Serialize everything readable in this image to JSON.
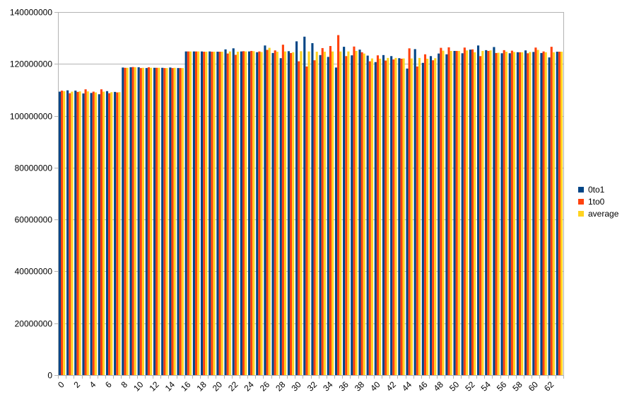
{
  "chart_data": {
    "type": "bar",
    "title": "",
    "xlabel": "",
    "ylabel": "",
    "ylim": [
      0,
      140000000
    ],
    "yticks": [
      0,
      20000000,
      40000000,
      60000000,
      80000000,
      100000000,
      120000000,
      140000000
    ],
    "ytick_labels": [
      "0",
      "20000000",
      "40000000",
      "60000000",
      "80000000",
      "100000000",
      "120000000",
      "140000000"
    ],
    "grid": "horizontal",
    "legend_position": "right",
    "categories": [
      0,
      1,
      2,
      3,
      4,
      5,
      6,
      7,
      8,
      9,
      10,
      11,
      12,
      13,
      14,
      15,
      16,
      17,
      18,
      19,
      20,
      21,
      22,
      23,
      24,
      25,
      26,
      27,
      28,
      29,
      30,
      31,
      32,
      33,
      34,
      35,
      36,
      37,
      38,
      39,
      40,
      41,
      42,
      43,
      44,
      45,
      46,
      47,
      48,
      49,
      50,
      51,
      52,
      53,
      54,
      55,
      56,
      57,
      58,
      59,
      60,
      61,
      62,
      63
    ],
    "xtick_labels_shown": [
      "0",
      "2",
      "4",
      "6",
      "8",
      "10",
      "12",
      "14",
      "16",
      "18",
      "20",
      "22",
      "24",
      "26",
      "28",
      "30",
      "32",
      "34",
      "36",
      "38",
      "40",
      "42",
      "44",
      "46",
      "48",
      "50",
      "52",
      "54",
      "56",
      "58",
      "60",
      "62"
    ],
    "series": [
      {
        "name": "0to1",
        "color": "#004586",
        "values": [
          109300000,
          109800000,
          109700000,
          108600000,
          108800000,
          108300000,
          109500000,
          109200000,
          118600000,
          118700000,
          118700000,
          118400000,
          118500000,
          118500000,
          118600000,
          118400000,
          124800000,
          124800000,
          124800000,
          124800000,
          124700000,
          125600000,
          126000000,
          124800000,
          124800000,
          124500000,
          127100000,
          124200000,
          122200000,
          124900000,
          128700000,
          130500000,
          128000000,
          123400000,
          122700000,
          118600000,
          126600000,
          123300000,
          125500000,
          123200000,
          120700000,
          123400000,
          123000000,
          122200000,
          118200000,
          125700000,
          120400000,
          123000000,
          124000000,
          123700000,
          125000000,
          124100000,
          125500000,
          127100000,
          125300000,
          126500000,
          124100000,
          124100000,
          124500000,
          125200000,
          124600000,
          124200000,
          122500000,
          124700000
        ]
      },
      {
        "name": "1to0",
        "color": "#ff420e",
        "values": [
          109700000,
          108700000,
          109200000,
          110200000,
          109300000,
          110200000,
          108700000,
          109000000,
          118500000,
          118800000,
          118400000,
          118700000,
          118500000,
          118400000,
          118400000,
          118400000,
          124800000,
          124800000,
          124700000,
          124700000,
          124700000,
          124000000,
          123500000,
          124900000,
          125000000,
          124800000,
          125400000,
          125200000,
          127400000,
          124200000,
          121000000,
          119000000,
          121400000,
          126100000,
          126900000,
          131100000,
          123000000,
          126700000,
          124500000,
          121000000,
          123300000,
          121300000,
          121700000,
          122000000,
          126000000,
          119000000,
          123700000,
          121400000,
          126200000,
          126400000,
          125000000,
          126300000,
          125600000,
          123000000,
          125000000,
          124200000,
          125300000,
          125100000,
          124500000,
          124100000,
          126300000,
          124800000,
          126600000,
          124700000
        ]
      },
      {
        "name": "average",
        "color": "#ffd320",
        "values": [
          109500000,
          109300000,
          109400000,
          109400000,
          109000000,
          109300000,
          109100000,
          109100000,
          118500000,
          118700000,
          118500000,
          118500000,
          118500000,
          118400000,
          118500000,
          118400000,
          124800000,
          124800000,
          124700000,
          124700000,
          124700000,
          124800000,
          124700000,
          124800000,
          124900000,
          124600000,
          126200000,
          124700000,
          124800000,
          124500000,
          124900000,
          124800000,
          124700000,
          124700000,
          124800000,
          124800000,
          124800000,
          125000000,
          124000000,
          122100000,
          122000000,
          122300000,
          122300000,
          122100000,
          122100000,
          122300000,
          122000000,
          122200000,
          125100000,
          125000000,
          125000000,
          125200000,
          124500000,
          125000000,
          125200000,
          124300000,
          124700000,
          124600000,
          124500000,
          124600000,
          125400000,
          124500000,
          124500000,
          124700000
        ]
      }
    ]
  },
  "legend": {
    "items": [
      {
        "label": "0to1",
        "color": "#004586"
      },
      {
        "label": "1to0",
        "color": "#ff420e"
      },
      {
        "label": "average",
        "color": "#ffd320"
      }
    ]
  }
}
